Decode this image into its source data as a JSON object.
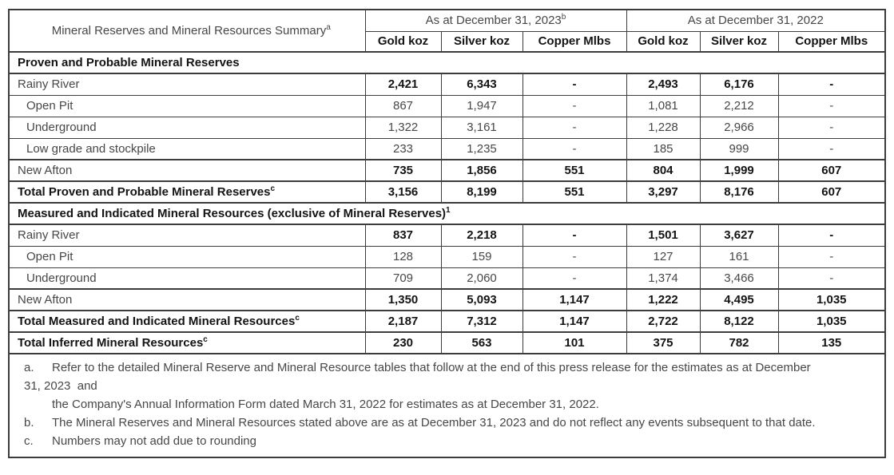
{
  "table": {
    "corner": {
      "label": "Mineral Reserves and Mineral Resources Summary",
      "superscript": "a"
    },
    "year_groups": [
      {
        "label": "As at December 31, 2023",
        "superscript": "b"
      },
      {
        "label": "As at December 31, 2022",
        "superscript": ""
      }
    ],
    "sub_columns": [
      "Gold koz",
      "Silver koz",
      "Copper Mlbs",
      "Gold koz",
      "Silver koz",
      "Copper Mlbs"
    ],
    "rows": [
      {
        "type": "section",
        "label": "Proven and Probable Mineral Reserves",
        "superscript": ""
      },
      {
        "type": "subtotal",
        "label": "Rainy River",
        "indent": false,
        "values": [
          "2,421",
          "6,343",
          "-",
          "2,493",
          "6,176",
          "-"
        ]
      },
      {
        "type": "detail",
        "label": "Open Pit",
        "indent": true,
        "values": [
          "867",
          "1,947",
          "-",
          "1,081",
          "2,212",
          "-"
        ]
      },
      {
        "type": "detail",
        "label": "Underground",
        "indent": true,
        "values": [
          "1,322",
          "3,161",
          "-",
          "1,228",
          "2,966",
          "-"
        ]
      },
      {
        "type": "detail",
        "label": "Low grade and stockpile",
        "indent": true,
        "values": [
          "233",
          "1,235",
          "-",
          "185",
          "999",
          "-"
        ]
      },
      {
        "type": "subtotal",
        "label": "New Afton",
        "indent": false,
        "values": [
          "735",
          "1,856",
          "551",
          "804",
          "1,999",
          "607"
        ]
      },
      {
        "type": "total",
        "label": "Total Proven and Probable Mineral Reserves",
        "superscript": "c",
        "values": [
          "3,156",
          "8,199",
          "551",
          "3,297",
          "8,176",
          "607"
        ]
      },
      {
        "type": "section",
        "label": "Measured and Indicated Mineral Resources (exclusive of Mineral Reserves)",
        "superscript": "1"
      },
      {
        "type": "subtotal",
        "label": "Rainy River",
        "indent": false,
        "values": [
          "837",
          "2,218",
          "-",
          "1,501",
          "3,627",
          "-"
        ]
      },
      {
        "type": "detail",
        "label": "Open Pit",
        "indent": true,
        "values": [
          "128",
          "159",
          "-",
          "127",
          "161",
          "-"
        ]
      },
      {
        "type": "detail",
        "label": "Underground",
        "indent": true,
        "values": [
          "709",
          "2,060",
          "-",
          "1,374",
          "3,466",
          "-"
        ]
      },
      {
        "type": "subtotal",
        "label": "New Afton",
        "indent": false,
        "values": [
          "1,350",
          "5,093",
          "1,147",
          "1,222",
          "4,495",
          "1,035"
        ]
      },
      {
        "type": "total",
        "label": "Total Measured and Indicated Mineral Resources",
        "superscript": "c",
        "values": [
          "2,187",
          "7,312",
          "1,147",
          "2,722",
          "8,122",
          "1,035"
        ]
      },
      {
        "type": "total",
        "label": "Total Inferred Mineral Resources",
        "superscript": "c",
        "values": [
          "230",
          "563",
          "101",
          "375",
          "782",
          "135"
        ]
      }
    ],
    "footnotes": [
      {
        "marker": "a.",
        "lines": [
          {
            "text": "Refer to the detailed Mineral Reserve and Mineral Resource tables that follow at the end of this press release for the estimates as at December",
            "indent": "hang"
          },
          {
            "text": "31, 2023  and",
            "indent": "flush"
          },
          {
            "text": "the Company's Annual Information Form dated March 31, 2022 for estimates as at December 31, 2022.",
            "indent": "body"
          }
        ]
      },
      {
        "marker": "b.",
        "lines": [
          {
            "text": "The Mineral Reserves and Mineral Resources stated above are as at December 31, 2023 and do not reflect any events subsequent to that date.",
            "indent": "hang"
          }
        ]
      },
      {
        "marker": "c.",
        "lines": [
          {
            "text": "Numbers may not add due to rounding",
            "indent": "hang"
          }
        ]
      }
    ],
    "colors": {
      "text": "#474747",
      "bold_text": "#141414",
      "border": "#3c3c3c",
      "background": "#ffffff"
    }
  }
}
